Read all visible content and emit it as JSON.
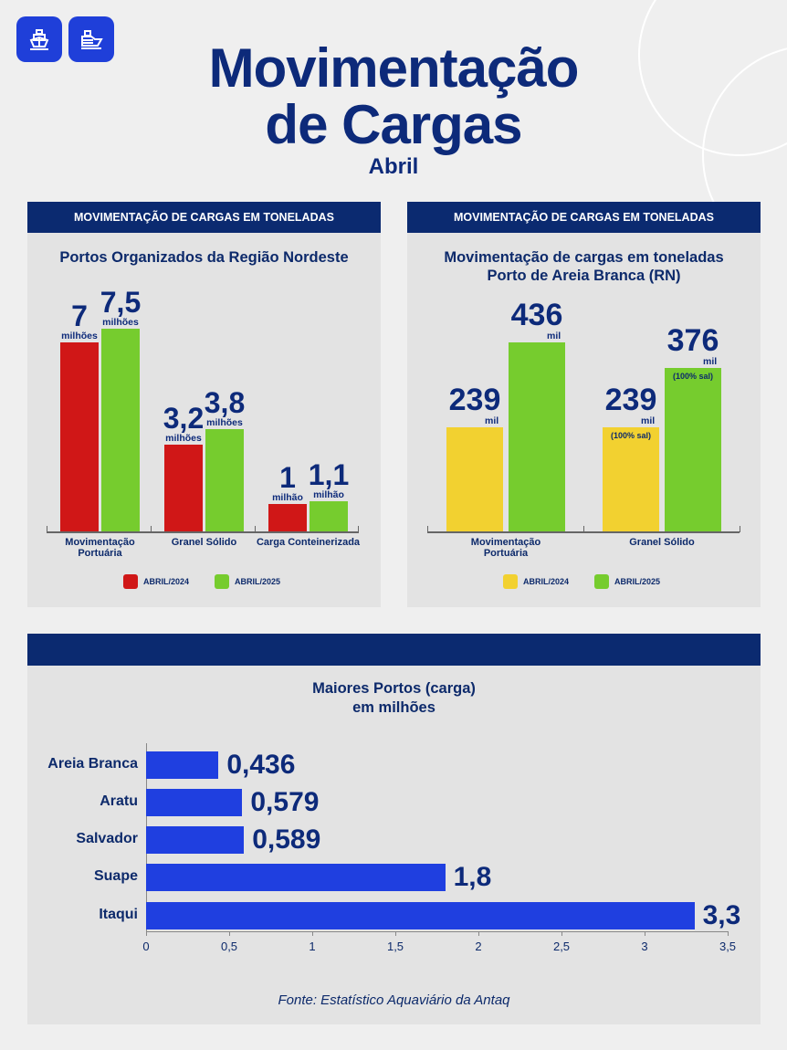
{
  "header": {
    "title_line1": "Movimentação",
    "title_line2": "de Cargas",
    "subtitle": "Abril",
    "icons": [
      "ship-front-icon",
      "cargo-ship-icon"
    ]
  },
  "colors": {
    "navy": "#0b2a70",
    "red": "#d01717",
    "green": "#76cc2e",
    "yellow": "#f2d130",
    "blue": "#1f3fe0"
  },
  "chart_data": [
    {
      "type": "bar",
      "panel_header": "MOVIMENTAÇÃO DE CARGAS EM TONELADAS",
      "title": "Portos Organizados da Região Nordeste",
      "categories": [
        "Movimentação Portuária",
        "Granel Sólido",
        "Carga Conteinerizada"
      ],
      "series": [
        {
          "name": "ABRIL/2024",
          "values": [
            7,
            3.2,
            1
          ],
          "labels": [
            "7",
            "3,2",
            "1"
          ],
          "units": [
            "milhões",
            "milhões",
            "milhão"
          ]
        },
        {
          "name": "ABRIL/2025",
          "values": [
            7.5,
            3.8,
            1.1
          ],
          "labels": [
            "7,5",
            "3,8",
            "1,1"
          ],
          "units": [
            "milhões",
            "milhões",
            "milhão"
          ]
        }
      ],
      "legend": "bottom"
    },
    {
      "type": "bar",
      "panel_header": "MOVIMENTAÇÃO DE CARGAS EM TONELADAS",
      "title": "Movimentação de cargas em toneladas Porto de Areia Branca (RN)",
      "categories": [
        "Movimentação Portuária",
        "Granel Sólido"
      ],
      "series": [
        {
          "name": "ABRIL/2024",
          "values": [
            239,
            239
          ],
          "labels": [
            "239",
            "239"
          ],
          "units": [
            "mil",
            "mil"
          ],
          "notes": [
            "",
            "(100% sal)"
          ]
        },
        {
          "name": "ABRIL/2025",
          "values": [
            436,
            376
          ],
          "labels": [
            "436",
            "376"
          ],
          "units": [
            "mil",
            "mil"
          ],
          "notes": [
            "",
            "(100% sal)"
          ]
        }
      ],
      "legend": "bottom"
    },
    {
      "type": "bar",
      "orientation": "horizontal",
      "title": "Maiores Portos (carga)",
      "subtitle": "em milhões",
      "categories": [
        "Areia Branca",
        "Aratu",
        "Salvador",
        "Suape",
        "Itaqui"
      ],
      "values": [
        0.436,
        0.579,
        0.589,
        1.8,
        3.3
      ],
      "labels": [
        "0,436",
        "0,579",
        "0,589",
        "1,8",
        "3,3"
      ],
      "xlim": [
        0,
        3.5
      ],
      "xticks": [
        "0",
        "0,5",
        "1",
        "1,5",
        "2",
        "2,5",
        "3",
        "3,5"
      ]
    }
  ],
  "source": "Fonte: Estatístico Aquaviário da Antaq"
}
